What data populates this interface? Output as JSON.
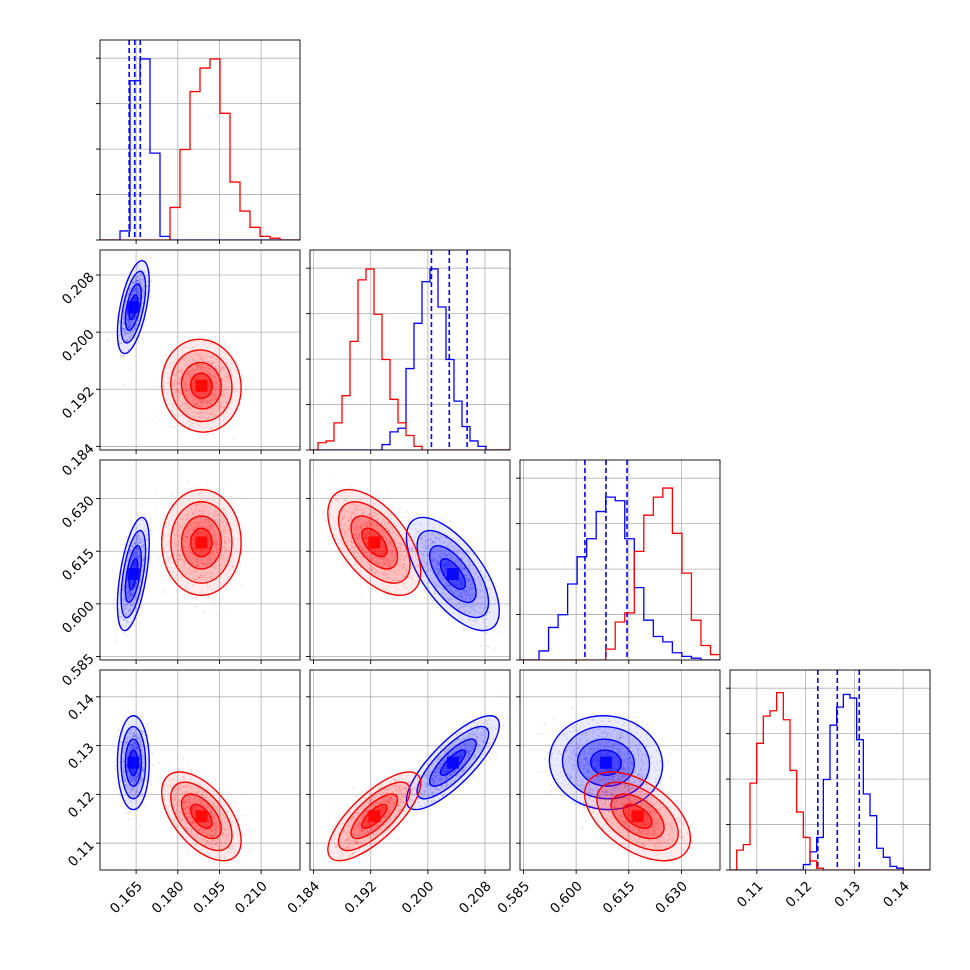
{
  "colors": {
    "series_a": "#0000ff",
    "series_b": "#ff0000",
    "grid": "#b0b0b0",
    "axis": "#000000"
  },
  "chart_data": {
    "type": "corner",
    "grid": true,
    "variables": [
      {
        "range": [
          0.152,
          0.224
        ],
        "ticks": [
          0.165,
          0.18,
          0.195,
          0.21
        ],
        "tick_labels": [
          "0.165",
          "0.180",
          "0.195",
          "0.210"
        ]
      },
      {
        "range": [
          0.1835,
          0.2115
        ],
        "ticks": [
          0.184,
          0.192,
          0.2,
          0.208
        ],
        "tick_labels": [
          "0.184",
          "0.192",
          "0.200",
          "0.208"
        ]
      },
      {
        "range": [
          0.584,
          0.641
        ],
        "ticks": [
          0.585,
          0.6,
          0.615,
          0.63
        ],
        "tick_labels": [
          "0.585",
          "0.600",
          "0.615",
          "0.630"
        ]
      },
      {
        "range": [
          0.1045,
          0.1455
        ],
        "ticks": [
          0.11,
          0.12,
          0.13,
          0.14
        ],
        "tick_labels": [
          "0.11",
          "0.12",
          "0.13",
          "0.14"
        ]
      }
    ],
    "series": [
      {
        "color": "#0000ff",
        "mean": [
          0.164,
          0.2035,
          0.6085,
          0.1265
        ],
        "sd": [
          0.0022,
          0.0025,
          0.0062,
          0.0037
        ],
        "corr": {
          "0-1": 0.55,
          "0-2": 0.55,
          "0-3": 0.0,
          "1-2": -0.65,
          "1-3": 0.8,
          "2-3": -0.05
        },
        "quantiles": [
          [
            0.1625,
            0.1645,
            0.1665
          ],
          [
            0.2005,
            0.203,
            0.2055
          ],
          [
            0.6025,
            0.6085,
            0.6145
          ],
          [
            0.1225,
            0.1265,
            0.131
          ]
        ],
        "histograms": [
          {
            "edges": [
              0.152,
              0.224
            ],
            "counts": [
              0,
              0,
              0.05,
              0.88,
              1.0,
              0.48,
              0.02,
              0,
              0,
              0,
              0,
              0,
              0,
              0,
              0,
              0,
              0,
              0,
              0,
              0
            ]
          },
          {
            "edges": [
              0.1835,
              0.2115
            ],
            "counts": [
              0,
              0,
              0,
              0,
              0,
              0,
              0,
              0,
              0,
              0.03,
              0.1,
              0.12,
              0.45,
              0.7,
              0.93,
              1.0,
              0.79,
              0.5,
              0.27,
              0.13,
              0.05,
              0.02,
              0,
              0,
              0
            ]
          },
          {
            "edges": [
              0.584,
              0.641
            ],
            "counts": [
              0,
              0,
              0.05,
              0.18,
              0.25,
              0.42,
              0.57,
              0.67,
              0.82,
              0.9,
              0.88,
              0.67,
              0.4,
              0.22,
              0.13,
              0.1,
              0.04,
              0.02,
              0.01,
              0,
              0
            ]
          },
          {
            "edges": [
              0.1045,
              0.1455
            ],
            "counts": [
              0,
              0,
              0,
              0,
              0,
              0,
              0,
              0,
              0,
              0,
              0,
              0.03,
              0.1,
              0.18,
              0.5,
              0.8,
              0.9,
              0.97,
              0.95,
              0.72,
              0.42,
              0.3,
              0.12,
              0.07,
              0.02,
              0.01,
              0,
              0,
              0,
              0
            ]
          }
        ]
      },
      {
        "color": "#ff0000",
        "mean": [
          0.1885,
          0.1925,
          0.6175,
          0.1155
        ],
        "sd": [
          0.0055,
          0.0025,
          0.0058,
          0.0035
        ],
        "corr": {
          "0-1": -0.05,
          "0-2": 0.0,
          "0-3": -0.55,
          "1-2": -0.55,
          "1-3": 0.75,
          "2-3": -0.5
        },
        "quantiles": [],
        "histograms": [
          {
            "edges": [
              0.152,
              0.224
            ],
            "counts": [
              0,
              0,
              0,
              0,
              0,
              0,
              0,
              0.18,
              0.5,
              0.82,
              0.95,
              1.0,
              0.7,
              0.32,
              0.16,
              0.07,
              0.02,
              0.01,
              0,
              0
            ]
          },
          {
            "edges": [
              0.1835,
              0.2115
            ],
            "counts": [
              0,
              0.04,
              0.05,
              0.15,
              0.3,
              0.6,
              0.94,
              1.0,
              0.75,
              0.5,
              0.28,
              0.15,
              0.08,
              0.02,
              0,
              0,
              0,
              0,
              0,
              0,
              0,
              0,
              0,
              0,
              0
            ]
          },
          {
            "edges": [
              0.584,
              0.641
            ],
            "counts": [
              0,
              0,
              0,
              0,
              0,
              0,
              0,
              0,
              0,
              0.06,
              0.21,
              0.26,
              0.6,
              0.8,
              0.9,
              0.95,
              0.7,
              0.48,
              0.22,
              0.08,
              0.03
            ]
          },
          {
            "edges": [
              0.1045,
              0.1455
            ],
            "counts": [
              0,
              0.11,
              0.14,
              0.48,
              0.7,
              0.85,
              0.88,
              0.98,
              0.83,
              0.55,
              0.32,
              0.18,
              0.05,
              0.01,
              0,
              0,
              0,
              0,
              0,
              0,
              0,
              0,
              0,
              0,
              0,
              0,
              0,
              0,
              0,
              0
            ]
          }
        ]
      }
    ]
  }
}
